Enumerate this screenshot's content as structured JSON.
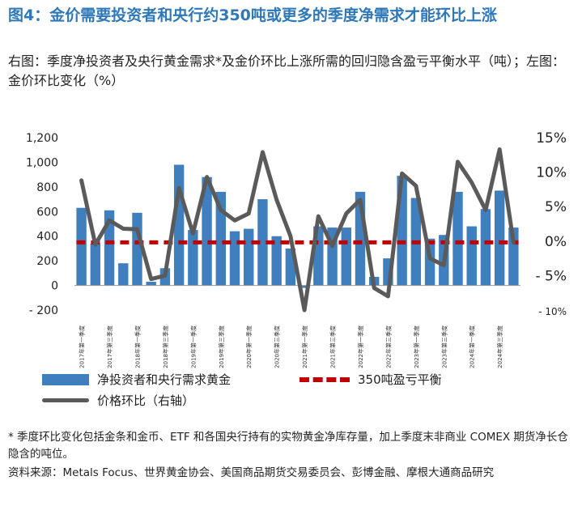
{
  "header": {
    "title": "图4：金价需要投资者和央行约350吨或更多的季度净需求才能环比上涨",
    "subtitle": "右图：季度净投资者及央行黄金需求*及金价环比上涨所需的回归隐含盈亏平衡水平（吨）；左图：金价环比变化（%）"
  },
  "chart_data": {
    "type": "bar",
    "title": "",
    "categories": [
      "2017Q1",
      "2017Q2",
      "2017Q3",
      "2017Q4",
      "2018Q1",
      "2018Q2",
      "2018Q3",
      "2018Q4",
      "2019Q1",
      "2019Q2",
      "2019Q3",
      "2019Q4",
      "2020Q1",
      "2020Q2",
      "2020Q3",
      "2020Q4",
      "2021Q1",
      "2021Q2",
      "2021Q3",
      "2021Q4",
      "2022Q1",
      "2022Q2",
      "2022Q3",
      "2022Q4",
      "2023Q1",
      "2023Q2",
      "2023Q3",
      "2023Q4",
      "2024Q1",
      "2024Q2",
      "2024Q3",
      "2024Q4"
    ],
    "tick_labels": [
      "2017年第一季度",
      "2017年第三季度",
      "2018年第一季度",
      "2018年第三季度",
      "2019年第一季度",
      "2019年第三季度",
      "2020年第一季度",
      "2020年第三季度",
      "2021年第一季度",
      "2021年第三季度",
      "2022年第一季度",
      "2022年第三季度",
      "2023年第一季度",
      "2023年第三季度",
      "2024年第一季度",
      "2024年第三季度"
    ],
    "series": [
      {
        "name": "净投资者和央行需求黄金",
        "type": "bar",
        "axis": "left",
        "color": "#3f7fbd",
        "values": [
          630,
          340,
          610,
          180,
          590,
          30,
          140,
          980,
          450,
          880,
          760,
          440,
          460,
          700,
          400,
          300,
          -20,
          480,
          470,
          470,
          760,
          70,
          220,
          890,
          710,
          380,
          410,
          760,
          480,
          620,
          770,
          470
        ]
      },
      {
        "name": "350吨盈亏平衡",
        "type": "line",
        "axis": "left",
        "color": "#c00000",
        "style": "dashed",
        "values": [
          350,
          350,
          350,
          350,
          350,
          350,
          350,
          350,
          350,
          350,
          350,
          350,
          350,
          350,
          350,
          350,
          350,
          350,
          350,
          350,
          350,
          350,
          350,
          350,
          350,
          350,
          350,
          350,
          350,
          350,
          350,
          350
        ]
      },
      {
        "name": "价格环比（右轴）",
        "type": "line",
        "axis": "right",
        "color": "#5a5a5a",
        "values": [
          8.8,
          -0.5,
          3.0,
          1.8,
          1.7,
          -5.5,
          -5.0,
          7.7,
          1.1,
          9.3,
          4.5,
          3.0,
          4.0,
          12.9,
          6.0,
          0.7,
          -10.0,
          3.6,
          -0.7,
          4.0,
          6.0,
          -6.8,
          -8.0,
          9.8,
          8.0,
          -2.5,
          -3.5,
          11.5,
          8.5,
          4.5,
          13.3,
          -0.2
        ]
      }
    ],
    "left_axis": {
      "ylim": [
        -200,
        1200
      ],
      "ticks": [
        -200,
        0,
        200,
        400,
        600,
        800,
        1000,
        1200
      ],
      "tick_labels": [
        "- 200",
        "0",
        "200",
        "400",
        "600",
        "800",
        "1,000",
        "1,200"
      ]
    },
    "right_axis": {
      "ylim": [
        -10,
        15
      ],
      "ticks": [
        -10,
        -5,
        0,
        5,
        10,
        15
      ],
      "tick_labels": [
        "- 10%",
        "- 5%",
        "0%",
        "5%",
        "10%",
        "15%"
      ]
    },
    "grid": false
  },
  "legend": {
    "bar_label": "净投资者和央行需求黄金",
    "dash_label": "350吨盈亏平衡",
    "line_label": "价格环比（右轴）"
  },
  "footnote": {
    "note": "* 季度环比变化包括金条和金币、ETF 和各国央行持有的实物黄金净库存量，加上季度末非商业 COMEX 期货净长仓隐含的吨位。",
    "source": "资料来源：Metals Focus、世界黄金协会、美国商品期货交易委员会、彭博金融、摩根大通商品研究"
  }
}
